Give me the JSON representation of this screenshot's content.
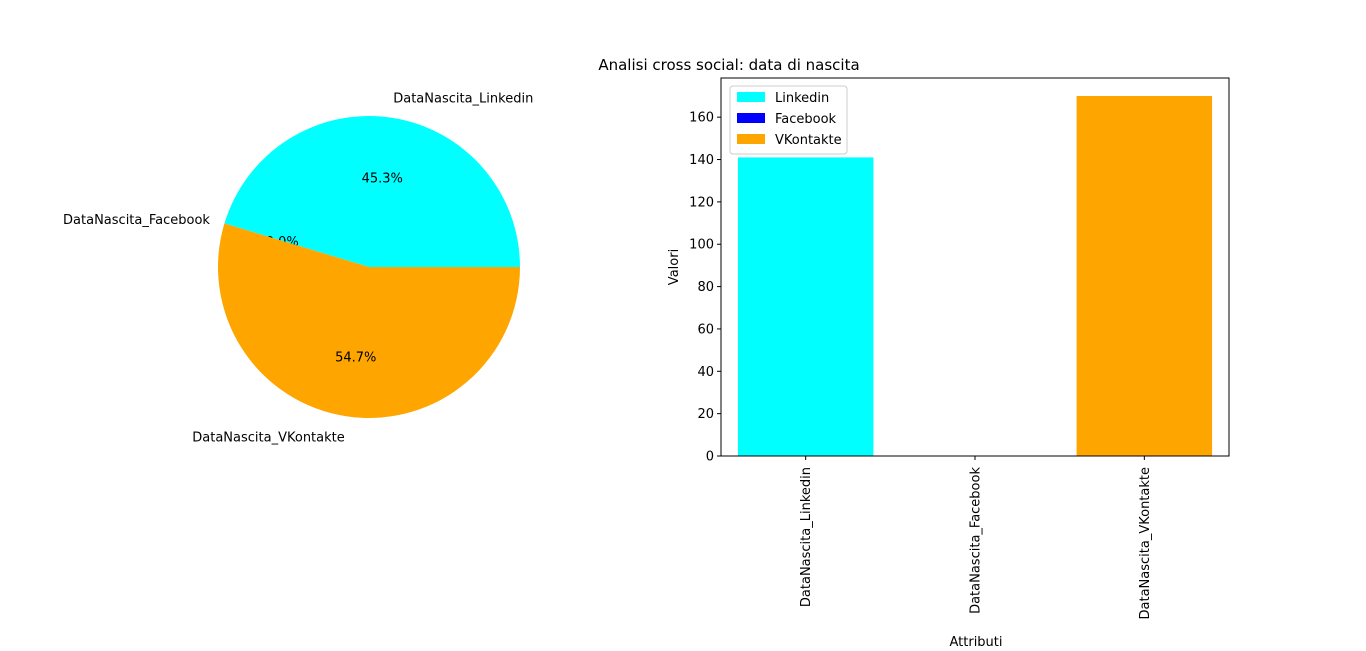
{
  "figure": {
    "title": "Analisi cross social: data di nascita"
  },
  "chart_data": [
    {
      "type": "pie",
      "labels": [
        "DataNascita_Linkedin",
        "DataNascita_Facebook",
        "DataNascita_VKontakte"
      ],
      "values": [
        141,
        0,
        170
      ],
      "percent_labels": [
        "45.3%",
        "0.0%",
        "54.7%"
      ],
      "colors": [
        "#00ffff",
        "#0000ff",
        "#ffa500"
      ]
    },
    {
      "type": "bar",
      "title": "Analisi cross social: data di nascita",
      "categories": [
        "DataNascita_Linkedin",
        "DataNascita_Facebook",
        "DataNascita_VKontakte"
      ],
      "values": [
        141,
        0,
        170
      ],
      "colors": [
        "#00ffff",
        "#0000ff",
        "#ffa500"
      ],
      "xlabel": "Attributi",
      "ylabel": "Valori",
      "ylim": [
        0,
        178.5
      ],
      "yticks": [
        0,
        20,
        40,
        60,
        80,
        100,
        120,
        140,
        160
      ],
      "legend": {
        "placement": "upper-left",
        "entries": [
          {
            "label": "Linkedin",
            "color": "#00ffff"
          },
          {
            "label": "Facebook",
            "color": "#0000ff"
          },
          {
            "label": "VKontakte",
            "color": "#ffa500"
          }
        ]
      },
      "grid": false
    }
  ]
}
